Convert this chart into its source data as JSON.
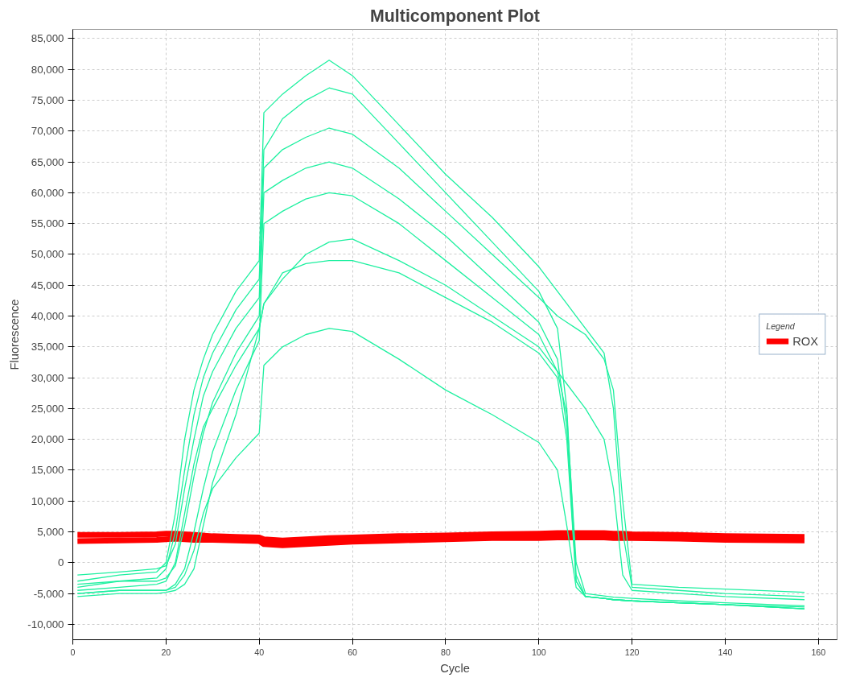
{
  "chart_data": {
    "type": "line",
    "title": "Multicomponent Plot",
    "xlabel": "Cycle",
    "ylabel": "Fluorescence",
    "legend_title": "Legend",
    "legend": "right",
    "grid": true,
    "line_style": "solid",
    "x": [
      1,
      10,
      18,
      20,
      22,
      24,
      26,
      28,
      30,
      35,
      40,
      41,
      45,
      50,
      55,
      60,
      70,
      80,
      90,
      100,
      104,
      106,
      108,
      110,
      114,
      116,
      118,
      120,
      130,
      140,
      157
    ],
    "xlim": [
      0,
      164
    ],
    "xticks": [
      0,
      20,
      40,
      60,
      80,
      100,
      120,
      140,
      160
    ],
    "ylim": [
      -12500,
      86500
    ],
    "yticks": [
      {
        "value": -10000,
        "label": "-10,000"
      },
      {
        "value": -5000,
        "label": "-5,000"
      },
      0,
      {
        "value": 5000,
        "label": "5,000"
      },
      {
        "value": 10000,
        "label": "10,000"
      },
      {
        "value": 15000,
        "label": "15,000"
      },
      {
        "value": 20000,
        "label": "20,000"
      },
      {
        "value": 25000,
        "label": "25,000"
      },
      {
        "value": 30000,
        "label": "30,000"
      },
      {
        "value": 35000,
        "label": "35,000"
      },
      {
        "value": 40000,
        "label": "40,000"
      },
      {
        "value": 45000,
        "label": "45,000"
      },
      {
        "value": 50000,
        "label": "50,000"
      },
      {
        "value": 55000,
        "label": "55,000"
      },
      {
        "value": 60000,
        "label": "60,000"
      },
      {
        "value": 65000,
        "label": "65,000"
      },
      {
        "value": 70000,
        "label": "70,000"
      },
      {
        "value": 75000,
        "label": "75,000"
      },
      {
        "value": 80000,
        "label": "80,000"
      },
      {
        "value": 85000,
        "label": "85,000"
      }
    ],
    "series": [
      {
        "color": "#ff0000",
        "name": "ROX",
        "values": [
          3500,
          3600,
          3700,
          3800,
          3900,
          3800,
          3700,
          3700,
          3700,
          3600,
          3500,
          3000,
          2800,
          3000,
          3200,
          3400,
          3600,
          3800,
          4000,
          4000,
          4100,
          4100,
          4100,
          4100,
          4100,
          4000,
          4000,
          4000,
          3900,
          3700,
          3600
        ]
      },
      {
        "color": "#ff0000",
        "values": [
          4500,
          4500,
          4600,
          4700,
          4700,
          4600,
          4500,
          4400,
          4300,
          4200,
          4100,
          3800,
          3600,
          3800,
          4000,
          4100,
          4300,
          4400,
          4600,
          4700,
          4800,
          4800,
          4800,
          4800,
          4800,
          4700,
          4700,
          4600,
          4500,
          4300,
          4200
        ]
      },
      {
        "color": "#1ef0a0",
        "values": [
          -3000,
          -2000,
          -1500,
          0,
          8000,
          20000,
          28000,
          33000,
          37000,
          44000,
          49000,
          73000,
          76000,
          79000,
          81500,
          79000,
          71000,
          63000,
          56000,
          48000,
          44000,
          42000,
          40000,
          38000,
          34000,
          25000,
          5000,
          -4000,
          -4500,
          -5000,
          -5500
        ]
      },
      {
        "color": "#1ef0a0",
        "values": [
          -4000,
          -3000,
          -2500,
          -1000,
          5000,
          15000,
          24000,
          30000,
          34000,
          41000,
          46000,
          67000,
          72000,
          75000,
          77000,
          76000,
          68000,
          60000,
          52000,
          44000,
          38000,
          25000,
          -2000,
          -5500,
          -5800,
          -6000,
          -6100,
          -6200,
          -6500,
          -6800,
          -7200
        ]
      },
      {
        "color": "#1ef0a0",
        "values": [
          -2000,
          -1500,
          -1000,
          -500,
          3000,
          12000,
          20000,
          27000,
          31000,
          38000,
          43000,
          64000,
          67000,
          69000,
          70500,
          69500,
          64000,
          57000,
          50000,
          43000,
          40000,
          39000,
          38000,
          37000,
          33000,
          28000,
          10000,
          -3500,
          -4000,
          -4300,
          -4800
        ]
      },
      {
        "color": "#1ef0a0",
        "values": [
          -3500,
          -3000,
          -3000,
          -2500,
          -500,
          6000,
          14000,
          21000,
          26000,
          34000,
          40000,
          60000,
          62000,
          64000,
          65000,
          64000,
          59000,
          53000,
          46000,
          39000,
          33000,
          22000,
          -3000,
          -5500,
          -5800,
          -6000,
          -6100,
          -6200,
          -6500,
          -6800,
          -7500
        ]
      },
      {
        "color": "#1ef0a0",
        "values": [
          -5000,
          -4500,
          -4500,
          -4500,
          -3500,
          -1000,
          5000,
          12000,
          18000,
          28000,
          36000,
          55000,
          57000,
          59000,
          60000,
          59500,
          55000,
          49000,
          43000,
          37000,
          31000,
          24000,
          0,
          -5000,
          -5400,
          -5600,
          -5700,
          -5800,
          -6200,
          -6500,
          -7000
        ]
      },
      {
        "color": "#1ef0a0",
        "values": [
          -4500,
          -4000,
          -3500,
          -3000,
          0,
          8000,
          16000,
          22000,
          25000,
          32000,
          38000,
          42000,
          46000,
          50000,
          52000,
          52500,
          49000,
          45000,
          40000,
          35000,
          31000,
          29000,
          27000,
          25000,
          20000,
          12000,
          -2000,
          -4500,
          -5000,
          -5500,
          -6000
        ]
      },
      {
        "color": "#1ef0a0",
        "values": [
          -5500,
          -5000,
          -5000,
          -4800,
          -4500,
          -3500,
          -1000,
          6000,
          13000,
          24000,
          38000,
          42000,
          47000,
          48500,
          49000,
          49000,
          47000,
          43000,
          39000,
          34000,
          30000,
          20000,
          -3000,
          -5500,
          -5800,
          -6000,
          -6100,
          -6200,
          -6500,
          -6800,
          -7500
        ]
      },
      {
        "color": "#1ef0a0",
        "values": [
          -5000,
          -4500,
          -4500,
          -4500,
          -4000,
          -2000,
          2000,
          8000,
          12000,
          17000,
          21000,
          32000,
          35000,
          37000,
          38000,
          37500,
          33000,
          28000,
          24000,
          19500,
          15000,
          6000,
          -4000,
          -5500,
          -5800,
          -6000,
          -6100,
          -6200,
          -6500,
          -6800,
          -7500
        ]
      }
    ]
  }
}
